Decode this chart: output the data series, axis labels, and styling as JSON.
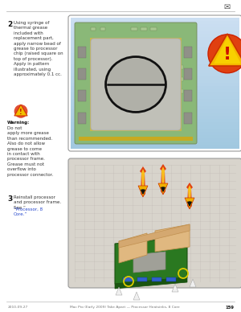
{
  "page_bg": "#ffffff",
  "top_line_color": "#cccccc",
  "step2_number": "2",
  "step2_text": "Using syringe of\nthermal grease\nincluded with\nreplacement part,\napply narrow bead of\ngrease to processor\nchip (raised square on\ntop of processor).\nApply in pattern\nillustrated, using\napproximately 0.1 cc.",
  "warning_label": "Warning:",
  "warning_text": " Do not\napply more grease\nthan recommended.\nAlso do not allow\ngrease to come\nin contact with\nprocessor frame.\nGrease must not\noverflow into\nprocessor connector.",
  "step3_number": "3",
  "step3_text": "Reinstall processor\nand processor frame.\nSee “Processor, 8\nCore.”",
  "footer_left": "2010-09-27",
  "footer_right": "Mac Pro (Early 2009) Take Apart — Processor Heatsinks, 8 Core",
  "footer_page": "159",
  "img1_bg_top": "#ccdff0",
  "img1_bg_bot": "#a8c8e0",
  "chip_green": "#8ab878",
  "chip_inner_gray": "#c0c0b8",
  "chip_border_yellow": "#d4b840",
  "ellipse_fill": "#b0b0a8",
  "img2_bg": "#c8c4bc"
}
